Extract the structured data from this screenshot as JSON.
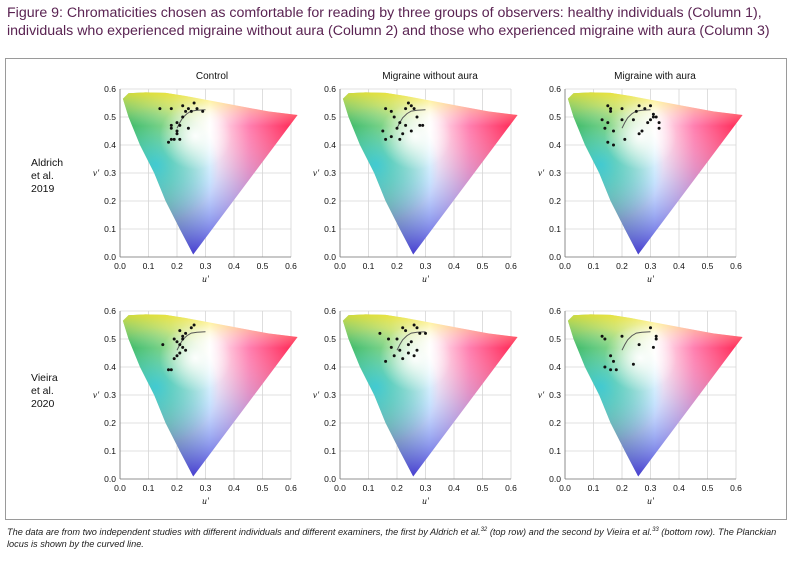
{
  "figure": {
    "title_line1": "Figure 9: Chromaticities chosen as comfortable for reading by three groups of observers: healthy individuals (Column 1),",
    "title_line2": "individuals who experienced migraine without aura (Column 2) and those who experienced migraine with aura (Column 3)",
    "caption": {
      "part1": "The data are from two independent studies with different individuals and different examiners, the first by Aldrich et al.",
      "ref1": "32",
      "part2": " (top row) and the second by Vieira et al.",
      "ref2": "33",
      "part3": " (bottom row). The Planckian locus is shown by the curved line."
    },
    "column_titles": [
      "Control",
      "Migraine without aura",
      "Migraine with aura"
    ],
    "row_labels": [
      [
        "Aldrich",
        "et al.",
        "2019"
      ],
      [
        "Vieira",
        "et al.",
        "2020"
      ]
    ]
  },
  "chart_data": [
    {
      "type": "scatter",
      "title": "Control",
      "study": "Aldrich et al. 2019",
      "xlabel": "u'",
      "ylabel": "v'",
      "xlim": [
        0,
        0.6
      ],
      "ylim": [
        0,
        0.6
      ],
      "xticks": [
        "0.0",
        "0.1",
        "0.2",
        "0.3",
        "0.4",
        "0.5",
        "0.6"
      ],
      "yticks": [
        "0.0",
        "0.1",
        "0.2",
        "0.3",
        "0.4",
        "0.5",
        "0.6"
      ],
      "points": [
        [
          0.14,
          0.53
        ],
        [
          0.18,
          0.53
        ],
        [
          0.22,
          0.54
        ],
        [
          0.23,
          0.52
        ],
        [
          0.24,
          0.53
        ],
        [
          0.26,
          0.55
        ],
        [
          0.27,
          0.53
        ],
        [
          0.29,
          0.52
        ],
        [
          0.18,
          0.46
        ],
        [
          0.18,
          0.47
        ],
        [
          0.2,
          0.48
        ],
        [
          0.2,
          0.45
        ],
        [
          0.21,
          0.47
        ],
        [
          0.22,
          0.5
        ],
        [
          0.24,
          0.46
        ],
        [
          0.17,
          0.41
        ],
        [
          0.18,
          0.42
        ],
        [
          0.19,
          0.42
        ],
        [
          0.2,
          0.44
        ],
        [
          0.21,
          0.42
        ],
        [
          0.25,
          0.52
        ]
      ]
    },
    {
      "type": "scatter",
      "title": "Migraine without aura",
      "study": "Aldrich et al. 2019",
      "xlabel": "u'",
      "ylabel": "v'",
      "xlim": [
        0,
        0.6
      ],
      "ylim": [
        0,
        0.6
      ],
      "xticks": [
        "0.0",
        "0.1",
        "0.2",
        "0.3",
        "0.4",
        "0.5",
        "0.6"
      ],
      "yticks": [
        "0.0",
        "0.1",
        "0.2",
        "0.3",
        "0.4",
        "0.5",
        "0.6"
      ],
      "points": [
        [
          0.16,
          0.53
        ],
        [
          0.18,
          0.52
        ],
        [
          0.19,
          0.5
        ],
        [
          0.23,
          0.53
        ],
        [
          0.24,
          0.55
        ],
        [
          0.25,
          0.54
        ],
        [
          0.26,
          0.53
        ],
        [
          0.27,
          0.5
        ],
        [
          0.28,
          0.47
        ],
        [
          0.29,
          0.47
        ],
        [
          0.21,
          0.48
        ],
        [
          0.23,
          0.47
        ],
        [
          0.15,
          0.45
        ],
        [
          0.16,
          0.42
        ],
        [
          0.18,
          0.43
        ],
        [
          0.2,
          0.46
        ],
        [
          0.22,
          0.44
        ],
        [
          0.25,
          0.45
        ],
        [
          0.21,
          0.42
        ]
      ]
    },
    {
      "type": "scatter",
      "title": "Migraine with aura",
      "study": "Aldrich et al. 2019",
      "xlabel": "u'",
      "ylabel": "v'",
      "xlim": [
        0,
        0.6
      ],
      "ylim": [
        0,
        0.6
      ],
      "xticks": [
        "0.0",
        "0.1",
        "0.2",
        "0.3",
        "0.4",
        "0.5",
        "0.6"
      ],
      "yticks": [
        "0.0",
        "0.1",
        "0.2",
        "0.3",
        "0.4",
        "0.5",
        "0.6"
      ],
      "points": [
        [
          0.15,
          0.54
        ],
        [
          0.16,
          0.53
        ],
        [
          0.16,
          0.52
        ],
        [
          0.2,
          0.53
        ],
        [
          0.26,
          0.54
        ],
        [
          0.28,
          0.53
        ],
        [
          0.3,
          0.54
        ],
        [
          0.31,
          0.51
        ],
        [
          0.32,
          0.5
        ],
        [
          0.33,
          0.48
        ],
        [
          0.33,
          0.46
        ],
        [
          0.29,
          0.48
        ],
        [
          0.3,
          0.49
        ],
        [
          0.13,
          0.49
        ],
        [
          0.15,
          0.48
        ],
        [
          0.14,
          0.46
        ],
        [
          0.17,
          0.45
        ],
        [
          0.2,
          0.49
        ],
        [
          0.24,
          0.49
        ],
        [
          0.25,
          0.52
        ],
        [
          0.27,
          0.45
        ],
        [
          0.26,
          0.44
        ],
        [
          0.15,
          0.41
        ],
        [
          0.17,
          0.4
        ],
        [
          0.21,
          0.42
        ],
        [
          0.31,
          0.5
        ]
      ]
    },
    {
      "type": "scatter",
      "title": "Control",
      "study": "Vieira et al. 2020",
      "xlabel": "u'",
      "ylabel": "v'",
      "xlim": [
        0,
        0.6
      ],
      "ylim": [
        0,
        0.6
      ],
      "xticks": [
        "0.0",
        "0.1",
        "0.2",
        "0.3",
        "0.4",
        "0.5",
        "0.6"
      ],
      "yticks": [
        "0.0",
        "0.1",
        "0.2",
        "0.3",
        "0.4",
        "0.5",
        "0.6"
      ],
      "points": [
        [
          0.21,
          0.53
        ],
        [
          0.22,
          0.51
        ],
        [
          0.23,
          0.52
        ],
        [
          0.25,
          0.54
        ],
        [
          0.26,
          0.55
        ],
        [
          0.19,
          0.5
        ],
        [
          0.2,
          0.49
        ],
        [
          0.21,
          0.48
        ],
        [
          0.22,
          0.47
        ],
        [
          0.15,
          0.48
        ],
        [
          0.2,
          0.44
        ],
        [
          0.21,
          0.45
        ],
        [
          0.17,
          0.39
        ],
        [
          0.18,
          0.39
        ],
        [
          0.19,
          0.43
        ],
        [
          0.23,
          0.46
        ],
        [
          0.22,
          0.5
        ]
      ]
    },
    {
      "type": "scatter",
      "title": "Migraine without aura",
      "study": "Vieira et al. 2020",
      "xlabel": "u'",
      "ylabel": "v'",
      "xlim": [
        0,
        0.6
      ],
      "ylim": [
        0,
        0.6
      ],
      "xticks": [
        "0.0",
        "0.1",
        "0.2",
        "0.3",
        "0.4",
        "0.5",
        "0.6"
      ],
      "yticks": [
        "0.0",
        "0.1",
        "0.2",
        "0.3",
        "0.4",
        "0.5",
        "0.6"
      ],
      "points": [
        [
          0.22,
          0.54
        ],
        [
          0.26,
          0.55
        ],
        [
          0.27,
          0.54
        ],
        [
          0.28,
          0.52
        ],
        [
          0.14,
          0.52
        ],
        [
          0.17,
          0.5
        ],
        [
          0.2,
          0.5
        ],
        [
          0.24,
          0.48
        ],
        [
          0.25,
          0.49
        ],
        [
          0.18,
          0.47
        ],
        [
          0.21,
          0.46
        ],
        [
          0.24,
          0.45
        ],
        [
          0.26,
          0.44
        ],
        [
          0.16,
          0.42
        ],
        [
          0.19,
          0.44
        ],
        [
          0.22,
          0.43
        ],
        [
          0.27,
          0.46
        ],
        [
          0.3,
          0.52
        ],
        [
          0.23,
          0.53
        ]
      ]
    },
    {
      "type": "scatter",
      "title": "Migraine with aura",
      "study": "Vieira et al. 2020",
      "xlabel": "u'",
      "ylabel": "v'",
      "xlim": [
        0,
        0.6
      ],
      "ylim": [
        0,
        0.6
      ],
      "xticks": [
        "0.0",
        "0.1",
        "0.2",
        "0.3",
        "0.4",
        "0.5",
        "0.6"
      ],
      "yticks": [
        "0.0",
        "0.1",
        "0.2",
        "0.3",
        "0.4",
        "0.5",
        "0.6"
      ],
      "points": [
        [
          0.13,
          0.51
        ],
        [
          0.14,
          0.5
        ],
        [
          0.2,
          0.51
        ],
        [
          0.3,
          0.54
        ],
        [
          0.32,
          0.51
        ],
        [
          0.32,
          0.5
        ],
        [
          0.31,
          0.47
        ],
        [
          0.16,
          0.44
        ],
        [
          0.17,
          0.42
        ],
        [
          0.16,
          0.39
        ],
        [
          0.18,
          0.39
        ],
        [
          0.14,
          0.4
        ],
        [
          0.24,
          0.41
        ],
        [
          0.26,
          0.48
        ]
      ]
    }
  ]
}
